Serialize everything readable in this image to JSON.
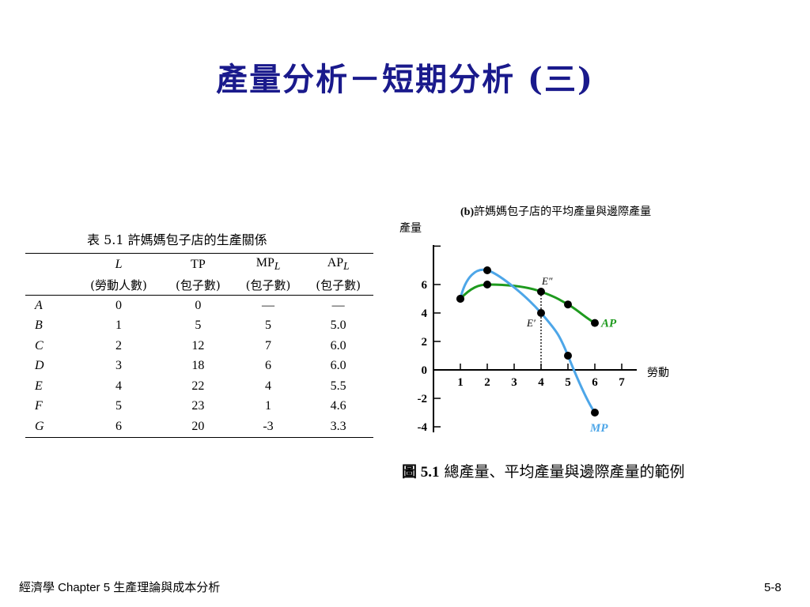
{
  "slide": {
    "title": "產量分析－短期分析 (三)",
    "footer_left": "經濟學   Chapter 5 生產理論與成本分析",
    "page_number": "5-8"
  },
  "table": {
    "caption": "表 5.1  許媽媽包子店的生產關係",
    "headers": [
      "L",
      "TP",
      "MP_L",
      "AP_L"
    ],
    "subheaders": [
      "(勞動人數)",
      "(包子數)",
      "(包子數)",
      "(包子數)"
    ],
    "rows": [
      {
        "label": "A",
        "L": "0",
        "TP": "0",
        "MP": "—",
        "AP": "—"
      },
      {
        "label": "B",
        "L": "1",
        "TP": "5",
        "MP": "5",
        "AP": "5.0"
      },
      {
        "label": "C",
        "L": "2",
        "TP": "12",
        "MP": "7",
        "AP": "6.0"
      },
      {
        "label": "D",
        "L": "3",
        "TP": "18",
        "MP": "6",
        "AP": "6.0"
      },
      {
        "label": "E",
        "L": "4",
        "TP": "22",
        "MP": "4",
        "AP": "5.5"
      },
      {
        "label": "F",
        "L": "5",
        "TP": "23",
        "MP": "1",
        "AP": "4.6"
      },
      {
        "label": "G",
        "L": "6",
        "TP": "20",
        "MP": "-3",
        "AP": "3.3"
      }
    ]
  },
  "figure": {
    "title_prefix": "(b)",
    "title_text": "許媽媽包子店的平均產量與邊際產量",
    "ylabel": "產量",
    "xlabel": "勞動",
    "caption_num": "圖 5.1",
    "caption_text": " 總產量、平均產量與邊際產量的範例",
    "ap_color": "#1e9a1e",
    "mp_color": "#4da6e8"
  },
  "chart_data": {
    "type": "line",
    "x": [
      1,
      2,
      3,
      4,
      5,
      6
    ],
    "xticks": [
      "1",
      "2",
      "3",
      "4",
      "5",
      "6",
      "7"
    ],
    "yticks": [
      "6",
      "4",
      "2",
      "0",
      "-2",
      "-4"
    ],
    "xlim": [
      0,
      7.5
    ],
    "ylim": [
      -4,
      8
    ],
    "series": [
      {
        "name": "AP",
        "points": [
          [
            1,
            5.0
          ],
          [
            2,
            6.0
          ],
          [
            4,
            5.5
          ],
          [
            5,
            4.6
          ],
          [
            6,
            3.3
          ]
        ]
      },
      {
        "name": "MP",
        "points": [
          [
            1,
            5
          ],
          [
            2,
            7
          ],
          [
            4,
            4
          ],
          [
            5,
            1
          ],
          [
            6,
            -3
          ]
        ]
      }
    ],
    "annotations": [
      {
        "text": "E″",
        "x": 4,
        "y": 5.5
      },
      {
        "text": "E′",
        "x": 4,
        "y": 4
      }
    ]
  }
}
